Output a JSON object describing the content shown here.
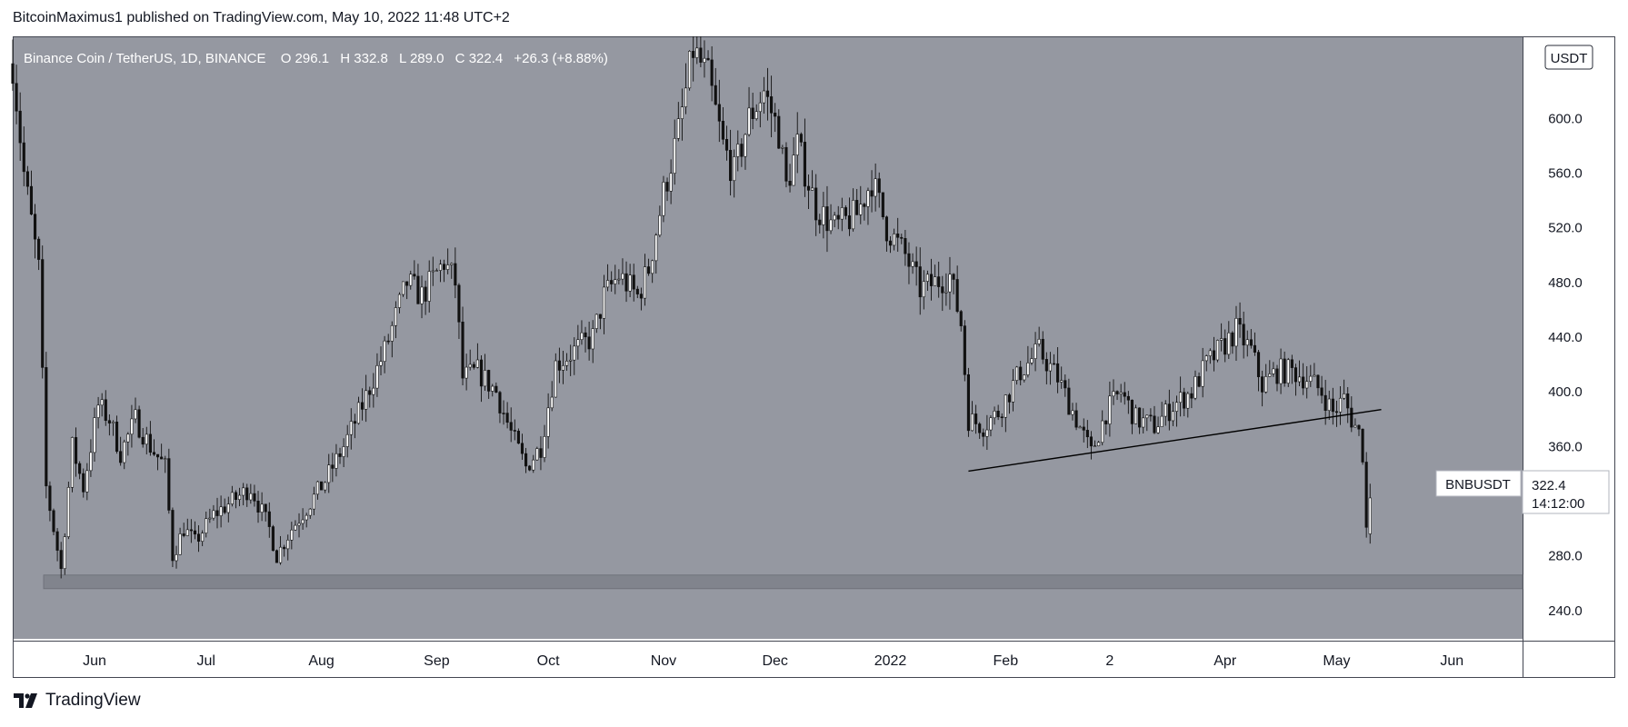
{
  "header": {
    "publisher_line": "BitcoinMaximus1 published on TradingView.com, May 10, 2022 11:48 UTC+2"
  },
  "footer": {
    "brand": "TradingView",
    "logo_icon": "tradingview-logo-icon"
  },
  "legend": {
    "title": "Binance Coin / TetherUS, 1D, BINANCE",
    "o_label": "O",
    "o_value": "296.1",
    "h_label": "H",
    "h_value": "332.8",
    "l_label": "L",
    "l_value": "289.0",
    "c_label": "C",
    "c_value": "322.4",
    "change": "+26.3 (+8.88%)"
  },
  "chart_data": {
    "type": "candlestick",
    "symbol": "BNBUSDT",
    "interval": "1D",
    "exchange": "BINANCE",
    "currency": "USDT",
    "last_price": "322.4",
    "countdown": "14:12:00",
    "ylim": [
      218,
      660
    ],
    "y_ticks": [
      240,
      280,
      320,
      360,
      400,
      440,
      480,
      520,
      560,
      600
    ],
    "y_tick_labels": [
      "240.0",
      "280.0",
      "",
      "360.0",
      "400.0",
      "440.0",
      "480.0",
      "520.0",
      "560.0",
      "600.0"
    ],
    "x_range": [
      "2021-05-10",
      "2022-06-20"
    ],
    "x_ticks": [
      {
        "date": "2021-06-01",
        "label": "Jun"
      },
      {
        "date": "2021-07-01",
        "label": "Jul"
      },
      {
        "date": "2021-08-01",
        "label": "Aug"
      },
      {
        "date": "2021-09-01",
        "label": "Sep"
      },
      {
        "date": "2021-10-01",
        "label": "Oct"
      },
      {
        "date": "2021-11-01",
        "label": "Nov"
      },
      {
        "date": "2021-12-01",
        "label": "Dec"
      },
      {
        "date": "2022-01-01",
        "label": "2022"
      },
      {
        "date": "2022-02-01",
        "label": "Feb"
      },
      {
        "date": "2022-03-01",
        "label": "2"
      },
      {
        "date": "2022-04-01",
        "label": "Apr"
      },
      {
        "date": "2022-05-01",
        "label": "May"
      },
      {
        "date": "2022-06-01",
        "label": "Jun"
      }
    ],
    "support_zone": [
      256,
      266
    ],
    "trendline": {
      "start": [
        "2022-01-22",
        342
      ],
      "end": [
        "2022-05-13",
        387
      ]
    },
    "anchors": [
      [
        "2021-05-10",
        640
      ],
      [
        "2021-05-13",
        560
      ],
      [
        "2021-05-17",
        490
      ],
      [
        "2021-05-19",
        330
      ],
      [
        "2021-05-21",
        300
      ],
      [
        "2021-05-23",
        270
      ],
      [
        "2021-05-26",
        360
      ],
      [
        "2021-05-29",
        330
      ],
      [
        "2021-06-02",
        390
      ],
      [
        "2021-06-05",
        380
      ],
      [
        "2021-06-08",
        355
      ],
      [
        "2021-06-12",
        380
      ],
      [
        "2021-06-16",
        360
      ],
      [
        "2021-06-20",
        345
      ],
      [
        "2021-06-22",
        280
      ],
      [
        "2021-06-25",
        300
      ],
      [
        "2021-06-28",
        290
      ],
      [
        "2021-07-03",
        310
      ],
      [
        "2021-07-08",
        320
      ],
      [
        "2021-07-13",
        330
      ],
      [
        "2021-07-18",
        300
      ],
      [
        "2021-07-20",
        280
      ],
      [
        "2021-07-24",
        300
      ],
      [
        "2021-07-28",
        315
      ],
      [
        "2021-08-02",
        335
      ],
      [
        "2021-08-07",
        360
      ],
      [
        "2021-08-12",
        390
      ],
      [
        "2021-08-18",
        430
      ],
      [
        "2021-08-24",
        480
      ],
      [
        "2021-08-28",
        470
      ],
      [
        "2021-09-03",
        495
      ],
      [
        "2021-09-06",
        480
      ],
      [
        "2021-09-08",
        410
      ],
      [
        "2021-09-12",
        415
      ],
      [
        "2021-09-17",
        400
      ],
      [
        "2021-09-21",
        370
      ],
      [
        "2021-09-25",
        345
      ],
      [
        "2021-09-29",
        360
      ],
      [
        "2021-10-03",
        420
      ],
      [
        "2021-10-08",
        430
      ],
      [
        "2021-10-13",
        440
      ],
      [
        "2021-10-16",
        470
      ],
      [
        "2021-10-20",
        485
      ],
      [
        "2021-10-25",
        470
      ],
      [
        "2021-10-28",
        490
      ],
      [
        "2021-11-01",
        545
      ],
      [
        "2021-11-05",
        590
      ],
      [
        "2021-11-09",
        650
      ],
      [
        "2021-11-13",
        630
      ],
      [
        "2021-11-17",
        580
      ],
      [
        "2021-11-20",
        560
      ],
      [
        "2021-11-24",
        600
      ],
      [
        "2021-11-28",
        620
      ],
      [
        "2021-12-02",
        590
      ],
      [
        "2021-12-04",
        550
      ],
      [
        "2021-12-07",
        580
      ],
      [
        "2021-12-12",
        535
      ],
      [
        "2021-12-17",
        520
      ],
      [
        "2021-12-23",
        530
      ],
      [
        "2021-12-27",
        555
      ],
      [
        "2021-12-31",
        520
      ],
      [
        "2022-01-05",
        500
      ],
      [
        "2022-01-09",
        475
      ],
      [
        "2022-01-13",
        480
      ],
      [
        "2022-01-17",
        485
      ],
      [
        "2022-01-20",
        450
      ],
      [
        "2022-01-22",
        380
      ],
      [
        "2022-01-26",
        375
      ],
      [
        "2022-01-30",
        385
      ],
      [
        "2022-02-05",
        415
      ],
      [
        "2022-02-10",
        430
      ],
      [
        "2022-02-15",
        410
      ],
      [
        "2022-02-20",
        380
      ],
      [
        "2022-02-24",
        355
      ],
      [
        "2022-02-28",
        385
      ],
      [
        "2022-03-04",
        400
      ],
      [
        "2022-03-08",
        380
      ],
      [
        "2022-03-13",
        375
      ],
      [
        "2022-03-18",
        390
      ],
      [
        "2022-03-23",
        400
      ],
      [
        "2022-03-27",
        420
      ],
      [
        "2022-04-01",
        435
      ],
      [
        "2022-04-04",
        445
      ],
      [
        "2022-04-08",
        430
      ],
      [
        "2022-04-11",
        405
      ],
      [
        "2022-04-15",
        415
      ],
      [
        "2022-04-19",
        415
      ],
      [
        "2022-04-23",
        410
      ],
      [
        "2022-04-27",
        400
      ],
      [
        "2022-04-30",
        385
      ],
      [
        "2022-05-03",
        395
      ],
      [
        "2022-05-05",
        380
      ],
      [
        "2022-05-07",
        370
      ],
      [
        "2022-05-08",
        355
      ],
      [
        "2022-05-09",
        300
      ],
      [
        "2022-05-10",
        322
      ]
    ]
  }
}
